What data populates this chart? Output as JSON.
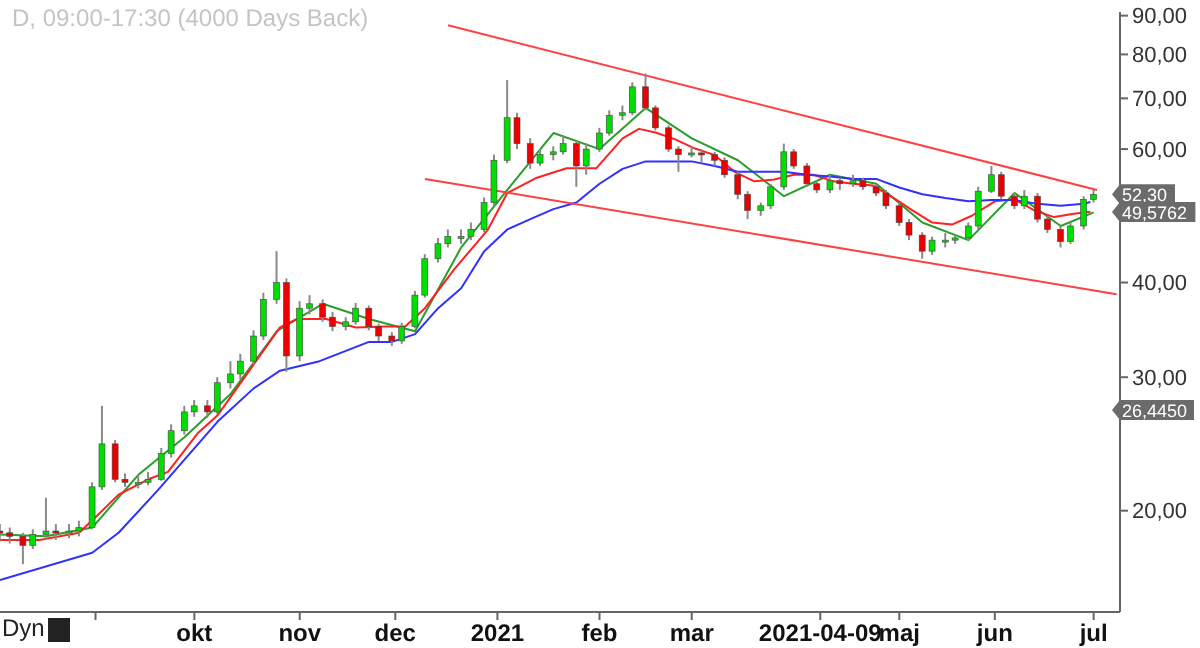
{
  "chart_data": {
    "type": "candlestick",
    "title": "D, 09:00-17:30 (4000 Days Back)",
    "x": [
      "2020-08-03",
      "2020-08-06",
      "2020-08-10",
      "2020-08-13",
      "2020-08-17",
      "2020-08-20",
      "2020-08-24",
      "2020-08-27",
      "2020-08-31",
      "2020-09-03",
      "2020-09-07",
      "2020-09-10",
      "2020-09-14",
      "2020-09-17",
      "2020-09-21",
      "2020-09-24",
      "2020-09-28",
      "2020-10-01",
      "2020-10-05",
      "2020-10-08",
      "2020-10-12",
      "2020-10-15",
      "2020-10-19",
      "2020-10-22",
      "2020-10-26",
      "2020-10-29",
      "2020-11-02",
      "2020-11-05",
      "2020-11-09",
      "2020-11-12",
      "2020-11-16",
      "2020-11-19",
      "2020-11-23",
      "2020-11-26",
      "2020-11-30",
      "2020-12-03",
      "2020-12-07",
      "2020-12-10",
      "2020-12-14",
      "2020-12-17",
      "2020-12-21",
      "2020-12-24",
      "2020-12-28",
      "2020-12-31",
      "2021-01-04",
      "2021-01-07",
      "2021-01-11",
      "2021-01-14",
      "2021-01-18",
      "2021-01-21",
      "2021-01-25",
      "2021-01-28",
      "2021-02-01",
      "2021-02-04",
      "2021-02-08",
      "2021-02-11",
      "2021-02-15",
      "2021-02-18",
      "2021-02-22",
      "2021-02-25",
      "2021-03-01",
      "2021-03-04",
      "2021-03-08",
      "2021-03-11",
      "2021-03-15",
      "2021-03-18",
      "2021-03-22",
      "2021-03-25",
      "2021-03-29",
      "2021-04-01",
      "2021-04-05",
      "2021-04-08",
      "2021-04-12",
      "2021-04-15",
      "2021-04-19",
      "2021-04-22",
      "2021-04-26",
      "2021-04-29",
      "2021-05-03",
      "2021-05-06",
      "2021-05-10",
      "2021-05-13",
      "2021-05-17",
      "2021-05-20",
      "2021-05-24",
      "2021-05-27",
      "2021-05-31",
      "2021-06-03",
      "2021-06-07",
      "2021-06-10",
      "2021-06-14",
      "2021-06-17",
      "2021-06-21",
      "2021-06-24",
      "2021-06-28",
      "2021-07-01"
    ],
    "ohlc": [
      [
        18.8,
        19.2,
        18.2,
        18.7
      ],
      [
        18.7,
        19.0,
        18.1,
        18.5
      ],
      [
        18.5,
        18.7,
        17.0,
        18.0
      ],
      [
        18.0,
        18.9,
        17.8,
        18.6
      ],
      [
        18.6,
        20.8,
        18.3,
        18.8
      ],
      [
        18.8,
        19.2,
        18.3,
        18.7
      ],
      [
        18.7,
        19.2,
        18.4,
        18.8
      ],
      [
        18.8,
        19.4,
        18.5,
        19.0
      ],
      [
        19.0,
        21.8,
        18.9,
        21.5
      ],
      [
        21.5,
        27.5,
        21.3,
        24.5
      ],
      [
        24.5,
        24.8,
        21.8,
        22.0
      ],
      [
        22.0,
        22.4,
        21.5,
        21.8
      ],
      [
        21.8,
        22.3,
        21.4,
        21.8
      ],
      [
        21.8,
        22.5,
        21.6,
        22.0
      ],
      [
        22.0,
        24.2,
        21.9,
        23.8
      ],
      [
        23.8,
        26.0,
        23.5,
        25.5
      ],
      [
        25.5,
        27.5,
        25.2,
        27.0
      ],
      [
        27.0,
        28.0,
        26.6,
        27.5
      ],
      [
        27.5,
        28.0,
        26.5,
        27.0
      ],
      [
        27.0,
        30.0,
        26.8,
        29.5
      ],
      [
        29.5,
        31.5,
        29.0,
        30.3
      ],
      [
        30.3,
        32.2,
        29.8,
        31.5
      ],
      [
        31.5,
        34.6,
        31.2,
        34.0
      ],
      [
        34.0,
        38.8,
        33.6,
        38.0
      ],
      [
        38.0,
        44.0,
        37.5,
        40.0
      ],
      [
        40.0,
        40.5,
        30.5,
        32.0
      ],
      [
        32.0,
        37.8,
        31.5,
        37.0
      ],
      [
        37.0,
        38.5,
        36.3,
        37.5
      ],
      [
        37.5,
        38.0,
        35.5,
        36.0
      ],
      [
        36.0,
        36.6,
        34.5,
        35.0
      ],
      [
        35.0,
        36.0,
        34.6,
        35.5
      ],
      [
        35.5,
        37.6,
        35.2,
        37.0
      ],
      [
        37.0,
        37.3,
        34.6,
        35.0
      ],
      [
        35.0,
        35.3,
        33.5,
        34.0
      ],
      [
        34.0,
        34.4,
        33.0,
        33.5
      ],
      [
        33.5,
        35.4,
        33.2,
        35.0
      ],
      [
        35.0,
        39.0,
        34.8,
        38.5
      ],
      [
        38.5,
        43.6,
        38.2,
        43.0
      ],
      [
        43.0,
        45.8,
        42.5,
        45.0
      ],
      [
        45.0,
        47.0,
        44.5,
        46.0
      ],
      [
        46.0,
        47.0,
        45.0,
        46.0
      ],
      [
        46.0,
        48.0,
        45.5,
        47.0
      ],
      [
        47.0,
        51.8,
        46.6,
        51.0
      ],
      [
        51.0,
        59.0,
        50.5,
        58.0
      ],
      [
        58.0,
        74.0,
        57.5,
        66.0
      ],
      [
        66.0,
        67.0,
        60.0,
        61.0
      ],
      [
        61.0,
        62.0,
        56.5,
        57.5
      ],
      [
        57.5,
        60.0,
        57.0,
        59.0
      ],
      [
        59.0,
        60.5,
        58.0,
        59.5
      ],
      [
        59.5,
        62.5,
        59.0,
        61.0
      ],
      [
        61.0,
        61.5,
        53.5,
        57.0
      ],
      [
        57.0,
        61.0,
        55.5,
        60.0
      ],
      [
        60.0,
        64.0,
        59.5,
        63.0
      ],
      [
        63.0,
        67.5,
        62.5,
        66.5
      ],
      [
        66.5,
        68.5,
        65.5,
        67.0
      ],
      [
        67.0,
        73.5,
        66.5,
        72.5
      ],
      [
        72.5,
        75.5,
        67.5,
        68.0
      ],
      [
        68.0,
        68.5,
        63.5,
        64.0
      ],
      [
        64.0,
        64.5,
        59.5,
        60.0
      ],
      [
        60.0,
        60.5,
        56.0,
        59.0
      ],
      [
        59.0,
        60.5,
        58.5,
        59.3
      ],
      [
        59.3,
        60.0,
        57.5,
        59.0
      ],
      [
        59.0,
        59.5,
        57.0,
        58.0
      ],
      [
        58.0,
        58.5,
        55.0,
        55.5
      ],
      [
        55.5,
        56.0,
        51.5,
        52.3
      ],
      [
        52.3,
        52.8,
        48.5,
        49.8
      ],
      [
        49.8,
        51.0,
        49.0,
        50.5
      ],
      [
        50.5,
        54.0,
        50.0,
        53.5
      ],
      [
        53.5,
        61.0,
        53.0,
        59.5
      ],
      [
        59.5,
        60.0,
        56.5,
        57.0
      ],
      [
        57.0,
        57.5,
        53.5,
        54.0
      ],
      [
        54.0,
        54.5,
        52.5,
        53.0
      ],
      [
        53.0,
        55.5,
        52.5,
        54.5
      ],
      [
        54.5,
        55.0,
        53.0,
        54.0
      ],
      [
        54.0,
        55.5,
        53.5,
        54.5
      ],
      [
        54.5,
        55.0,
        53.0,
        53.5
      ],
      [
        53.5,
        54.0,
        52.0,
        52.5
      ],
      [
        52.5,
        53.0,
        50.0,
        50.5
      ],
      [
        50.5,
        51.0,
        47.5,
        48.0
      ],
      [
        48.0,
        48.5,
        45.5,
        46.2
      ],
      [
        46.2,
        46.6,
        43.0,
        44.0
      ],
      [
        44.0,
        46.0,
        43.5,
        45.5
      ],
      [
        45.5,
        46.5,
        44.5,
        45.5
      ],
      [
        45.5,
        46.3,
        45.0,
        45.8
      ],
      [
        45.8,
        48.0,
        45.5,
        47.5
      ],
      [
        47.5,
        53.5,
        47.0,
        52.8
      ],
      [
        52.8,
        57.0,
        52.5,
        55.5
      ],
      [
        55.5,
        56.0,
        51.5,
        52.0
      ],
      [
        52.0,
        52.5,
        50.0,
        50.5
      ],
      [
        50.5,
        53.0,
        50.0,
        52.0
      ],
      [
        52.0,
        52.5,
        48.0,
        48.5
      ],
      [
        48.5,
        49.0,
        46.5,
        47.0
      ],
      [
        47.0,
        47.5,
        44.5,
        45.3
      ],
      [
        45.3,
        48.0,
        45.0,
        47.5
      ],
      [
        47.5,
        52.0,
        47.0,
        51.5
      ],
      [
        51.5,
        53.0,
        51.0,
        52.3
      ]
    ],
    "colors": [
      "#ee0000",
      "#ee0000",
      "#ee0000",
      "#00dd00",
      "#00dd00",
      "#ee0000",
      "#00dd00",
      "#00dd00",
      "#00dd00",
      "#00dd00",
      "#ee0000",
      "#ee0000",
      "#00dd00",
      "#00dd00",
      "#00dd00",
      "#00dd00",
      "#00dd00",
      "#00dd00",
      "#ee0000",
      "#00dd00",
      "#00dd00",
      "#00dd00",
      "#00dd00",
      "#00dd00",
      "#00dd00",
      "#ee0000",
      "#00dd00",
      "#00dd00",
      "#ee0000",
      "#ee0000",
      "#00dd00",
      "#00dd00",
      "#ee0000",
      "#ee0000",
      "#ee0000",
      "#00dd00",
      "#00dd00",
      "#00dd00",
      "#00dd00",
      "#00dd00",
      "#00dd00",
      "#00dd00",
      "#00dd00",
      "#00dd00",
      "#00dd00",
      "#ee0000",
      "#ee0000",
      "#00dd00",
      "#00dd00",
      "#00dd00",
      "#ee0000",
      "#00dd00",
      "#00dd00",
      "#00dd00",
      "#00dd00",
      "#00dd00",
      "#ee0000",
      "#ee0000",
      "#ee0000",
      "#ee0000",
      "#00dd00",
      "#ee0000",
      "#ee0000",
      "#ee0000",
      "#ee0000",
      "#ee0000",
      "#00dd00",
      "#00dd00",
      "#00dd00",
      "#ee0000",
      "#ee0000",
      "#ee0000",
      "#00dd00",
      "#ee0000",
      "#00dd00",
      "#ee0000",
      "#ee0000",
      "#ee0000",
      "#ee0000",
      "#ee0000",
      "#ee0000",
      "#00dd00",
      "#00dd00",
      "#00dd00",
      "#00dd00",
      "#00dd00",
      "#00dd00",
      "#ee0000",
      "#ee0000",
      "#00dd00",
      "#ee0000",
      "#ee0000",
      "#ee0000",
      "#00dd00",
      "#00dd00",
      "#00dd00"
    ],
    "series": [
      {
        "type": "line",
        "color": "#2a9d2a",
        "x": [
          "2020-08-03",
          "2020-08-17",
          "2020-08-31",
          "2020-09-14",
          "2020-09-28",
          "2020-10-12",
          "2020-10-26",
          "2020-11-09",
          "2020-11-23",
          "2020-12-07",
          "2020-12-21",
          "2021-01-04",
          "2021-01-18",
          "2021-02-01",
          "2021-02-15",
          "2021-03-01",
          "2021-03-15",
          "2021-03-29",
          "2021-04-12",
          "2021-04-26",
          "2021-05-10",
          "2021-05-24",
          "2021-06-07",
          "2021-06-21",
          "2021-07-01"
        ],
        "values": [
          18.6,
          18.5,
          19.0,
          22.3,
          25.0,
          28.5,
          34.5,
          37.5,
          35.8,
          34.5,
          44.5,
          53,
          63,
          60,
          68,
          62,
          58,
          52,
          55.5,
          54,
          48,
          45.5,
          52.5,
          47.5,
          49.5
        ]
      },
      {
        "type": "line",
        "color": "#ff2020",
        "x": [
          "2020-08-03",
          "2020-08-15",
          "2020-08-27",
          "2020-09-02",
          "2020-09-08",
          "2020-09-17",
          "2020-09-23",
          "2020-10-02",
          "2020-10-08",
          "2020-10-17",
          "2020-10-27",
          "2020-11-01",
          "2020-11-10",
          "2020-11-19",
          "2020-11-28",
          "2020-12-04",
          "2020-12-10",
          "2020-12-19",
          "2020-12-29",
          "2021-01-04",
          "2021-01-13",
          "2021-01-22",
          "2021-01-31",
          "2021-02-08",
          "2021-02-13",
          "2021-02-18",
          "2021-02-24",
          "2021-03-02",
          "2021-03-08",
          "2021-03-14",
          "2021-03-20",
          "2021-03-26",
          "2021-04-01",
          "2021-04-07",
          "2021-04-13",
          "2021-04-19",
          "2021-04-25",
          "2021-05-01",
          "2021-05-07",
          "2021-05-13",
          "2021-05-19",
          "2021-05-25",
          "2021-06-01",
          "2021-06-07",
          "2021-06-13",
          "2021-06-19",
          "2021-06-25",
          "2021-06-30"
        ],
        "values": [
          18.3,
          18.3,
          18.7,
          19.8,
          21.0,
          22.0,
          22.5,
          25.3,
          26.7,
          30.3,
          34.9,
          35.8,
          35.8,
          34.9,
          35.0,
          35.0,
          37.0,
          41.7,
          46.9,
          52.5,
          55.0,
          56.6,
          56.6,
          62.0,
          63.8,
          63.1,
          61.8,
          60.1,
          58.9,
          56.0,
          54.4,
          54.7,
          55.5,
          55.5,
          54.4,
          54.0,
          53.7,
          51.8,
          49.8,
          48.0,
          47.7,
          49.0,
          51.2,
          51.5,
          49.8,
          48.8,
          49.3,
          49.6
        ]
      },
      {
        "type": "line",
        "color": "#3030ff",
        "x": [
          "2020-08-03",
          "2020-08-31",
          "2020-09-08",
          "2020-09-20",
          "2020-10-08",
          "2020-10-19",
          "2020-10-27",
          "2020-11-08",
          "2020-11-23",
          "2020-11-30",
          "2020-12-07",
          "2020-12-14",
          "2020-12-21",
          "2020-12-28",
          "2021-01-04",
          "2021-01-11",
          "2021-01-18",
          "2021-01-25",
          "2021-02-01",
          "2021-02-08",
          "2021-02-15",
          "2021-02-22",
          "2021-03-01",
          "2021-03-08",
          "2021-03-15",
          "2021-03-22",
          "2021-03-29",
          "2021-04-05",
          "2021-04-12",
          "2021-04-19",
          "2021-04-26",
          "2021-05-03",
          "2021-05-10",
          "2021-05-17",
          "2021-05-24",
          "2021-05-31",
          "2021-06-07",
          "2021-06-14",
          "2021-06-21",
          "2021-06-28",
          "2021-06-30"
        ],
        "values": [
          16.2,
          17.6,
          18.7,
          21.3,
          26.2,
          29.0,
          30.6,
          31.5,
          33.4,
          33.4,
          34.2,
          37.0,
          39.3,
          44.0,
          47.0,
          48.5,
          50.0,
          51.0,
          54.0,
          56.5,
          57.8,
          57.8,
          57.8,
          57.0,
          56.0,
          56.0,
          56.0,
          55.5,
          55.2,
          54.8,
          54.8,
          53.4,
          52.3,
          51.7,
          51.2,
          51.4,
          51.4,
          50.8,
          50.5,
          50.8,
          51.1
        ]
      },
      {
        "type": "line",
        "color": "#ff4040",
        "x": [
          "2020-12-17",
          "2021-07-02"
        ],
        "values": [
          87.4,
          53.0
        ]
      },
      {
        "type": "line",
        "color": "#ff4040",
        "x": [
          "2020-12-10",
          "2021-07-08"
        ],
        "values": [
          54.8,
          38.6
        ]
      }
    ],
    "log": true,
    "ylim": [
      14.7,
      91
    ],
    "yticks": [
      {
        "value": 20,
        "label": "20,00"
      },
      {
        "value": 30,
        "label": "30,00"
      },
      {
        "value": 40,
        "label": "40,00"
      },
      {
        "value": 60,
        "label": "60,00"
      },
      {
        "value": 70,
        "label": "70,00"
      },
      {
        "value": 80,
        "label": "80,00"
      },
      {
        "value": 90,
        "label": "90,00"
      }
    ],
    "xlim": [
      "2020-08-03",
      "2021-07-09"
    ],
    "xticks": [
      {
        "value": "2020-09-01",
        "label": null
      },
      {
        "value": "2020-10-01",
        "label": "okt"
      },
      {
        "value": "2020-11-02",
        "label": "nov"
      },
      {
        "value": "2020-12-01",
        "label": "dec"
      },
      {
        "value": "2021-01-01",
        "label": "2021"
      },
      {
        "value": "2021-02-01",
        "label": "feb"
      },
      {
        "value": "2021-03-01",
        "label": "mar"
      },
      {
        "value": "2021-04-09",
        "label": "2021-04-09"
      },
      {
        "value": "2021-05-03",
        "label": "maj"
      },
      {
        "value": "2021-06-01",
        "label": "jun"
      },
      {
        "value": "2021-07-01",
        "label": "jul"
      }
    ],
    "annotations": [
      "Dyn",
      {
        "text": "52,30",
        "x": "2021-07-01",
        "y": 52.3
      },
      {
        "text": "49,5762",
        "x": "2021-07-01",
        "y": 49.5762
      },
      "26,4450"
    ],
    "legend": false,
    "grid": false
  }
}
